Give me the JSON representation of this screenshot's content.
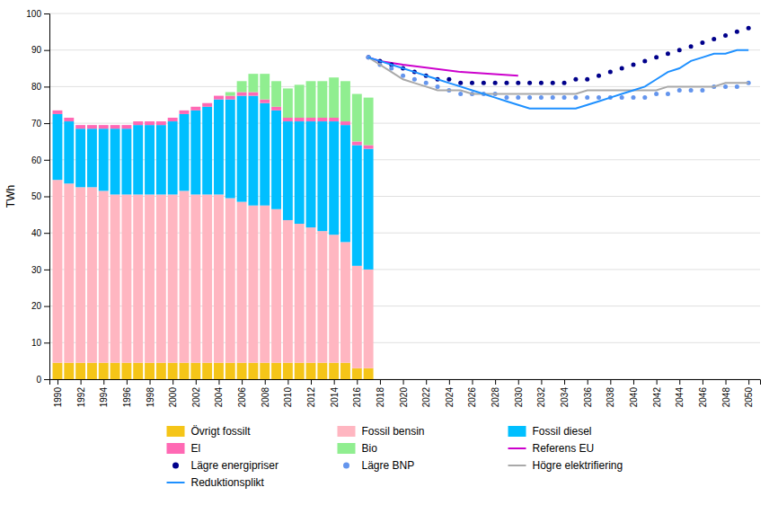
{
  "chart_data": {
    "type": "bar",
    "stacked": true,
    "grid": true,
    "ylabel": "TWh",
    "xlim": [
      1989.3,
      2051
    ],
    "xticks": [
      1990,
      1992,
      1994,
      1996,
      1998,
      2000,
      2002,
      2004,
      2006,
      2008,
      2010,
      2012,
      2014,
      2016,
      2018,
      2020,
      2022,
      2024,
      2026,
      2028,
      2030,
      2032,
      2034,
      2036,
      2038,
      2040,
      2042,
      2044,
      2046,
      2048,
      2050
    ],
    "ylim": [
      0,
      100
    ],
    "yticks": [
      0,
      10,
      20,
      30,
      40,
      50,
      60,
      70,
      80,
      90,
      100
    ],
    "series": [
      {
        "name": "Övrigt fossilt",
        "type": "bar",
        "color": "#F5C518",
        "x": [
          1990,
          1991,
          1992,
          1993,
          1994,
          1995,
          1996,
          1997,
          1998,
          1999,
          2000,
          2001,
          2002,
          2003,
          2004,
          2005,
          2006,
          2007,
          2008,
          2009,
          2010,
          2011,
          2012,
          2013,
          2014,
          2015,
          2016,
          2017
        ],
        "values": [
          4.5,
          4.5,
          4.5,
          4.5,
          4.5,
          4.5,
          4.5,
          4.5,
          4.5,
          4.5,
          4.5,
          4.5,
          4.5,
          4.5,
          4.5,
          4.5,
          4.5,
          4.5,
          4.5,
          4.5,
          4.5,
          4.5,
          4.5,
          4.5,
          4.5,
          4.5,
          3.0,
          3.0
        ]
      },
      {
        "name": "Fossil bensin",
        "type": "bar",
        "color": "#FFB6C1",
        "x": [
          1990,
          1991,
          1992,
          1993,
          1994,
          1995,
          1996,
          1997,
          1998,
          1999,
          2000,
          2001,
          2002,
          2003,
          2004,
          2005,
          2006,
          2007,
          2008,
          2009,
          2010,
          2011,
          2012,
          2013,
          2014,
          2015,
          2016,
          2017
        ],
        "values": [
          50,
          49,
          48,
          48,
          47,
          46,
          46,
          46,
          46,
          46,
          46,
          47,
          46,
          46,
          46,
          45,
          44,
          43,
          43,
          42,
          39,
          38,
          37,
          36,
          35,
          33,
          28,
          27
        ]
      },
      {
        "name": "Fossil diesel",
        "type": "bar",
        "color": "#00BFFF",
        "x": [
          1990,
          1991,
          1992,
          1993,
          1994,
          1995,
          1996,
          1997,
          1998,
          1999,
          2000,
          2001,
          2002,
          2003,
          2004,
          2005,
          2006,
          2007,
          2008,
          2009,
          2010,
          2011,
          2012,
          2013,
          2014,
          2015,
          2016,
          2017
        ],
        "values": [
          18,
          17,
          16,
          16,
          17,
          18,
          18,
          19,
          19,
          19,
          20,
          21,
          23,
          24,
          26,
          27,
          29,
          30,
          28,
          27,
          27,
          28,
          29,
          30,
          31,
          32,
          33,
          33
        ]
      },
      {
        "name": "El",
        "type": "bar",
        "color": "#FF69B4",
        "x": [
          1990,
          1991,
          1992,
          1993,
          1994,
          1995,
          1996,
          1997,
          1998,
          1999,
          2000,
          2001,
          2002,
          2003,
          2004,
          2005,
          2006,
          2007,
          2008,
          2009,
          2010,
          2011,
          2012,
          2013,
          2014,
          2015,
          2016,
          2017
        ],
        "values": [
          1,
          1,
          1,
          1,
          1,
          1,
          1,
          1,
          1,
          1,
          1,
          1,
          1,
          1,
          1,
          1,
          1,
          1,
          1,
          1,
          1,
          1,
          1,
          1,
          1,
          1,
          1,
          1
        ]
      },
      {
        "name": "Bio",
        "type": "bar",
        "color": "#90EE90",
        "x": [
          1990,
          1991,
          1992,
          1993,
          1994,
          1995,
          1996,
          1997,
          1998,
          1999,
          2000,
          2001,
          2002,
          2003,
          2004,
          2005,
          2006,
          2007,
          2008,
          2009,
          2010,
          2011,
          2012,
          2013,
          2014,
          2015,
          2016,
          2017
        ],
        "values": [
          0,
          0,
          0,
          0,
          0,
          0,
          0,
          0,
          0,
          0,
          0,
          0,
          0,
          0,
          0,
          1,
          3,
          5,
          7,
          7,
          8,
          9,
          10,
          10,
          11,
          11,
          13,
          13
        ]
      },
      {
        "name": "Referens EU",
        "type": "line",
        "line_style": "solid",
        "color": "#CC00CC",
        "x": [
          2017,
          2018,
          2020,
          2025,
          2030
        ],
        "values": [
          88,
          87,
          86,
          84,
          83
        ]
      },
      {
        "name": "Lägre energipriser",
        "type": "scatter",
        "marker": "circle",
        "line_style": "none",
        "color": "#00008B",
        "x": [
          2017,
          2018,
          2019,
          2020,
          2021,
          2022,
          2023,
          2024,
          2025,
          2026,
          2027,
          2028,
          2029,
          2030,
          2031,
          2032,
          2033,
          2034,
          2035,
          2036,
          2037,
          2038,
          2039,
          2040,
          2041,
          2042,
          2043,
          2044,
          2045,
          2046,
          2047,
          2048,
          2049,
          2050
        ],
        "values": [
          88,
          87,
          86,
          85,
          84,
          83,
          82,
          82,
          81,
          81,
          81,
          81,
          81,
          81,
          81,
          81,
          81,
          81,
          82,
          82,
          83,
          84,
          85,
          86,
          87,
          88,
          89,
          90,
          91,
          92,
          93,
          94,
          95,
          96
        ]
      },
      {
        "name": "Lägre BNP",
        "type": "scatter",
        "marker": "circle",
        "line_style": "none",
        "color": "#6495ED",
        "x": [
          2017,
          2018,
          2019,
          2020,
          2021,
          2022,
          2023,
          2024,
          2025,
          2026,
          2027,
          2028,
          2029,
          2030,
          2031,
          2032,
          2033,
          2034,
          2035,
          2036,
          2037,
          2038,
          2039,
          2040,
          2041,
          2042,
          2043,
          2044,
          2045,
          2046,
          2047,
          2048,
          2049,
          2050
        ],
        "values": [
          88,
          86,
          85,
          83,
          82,
          81,
          80,
          79,
          78,
          78,
          78,
          78,
          77,
          77,
          77,
          77,
          77,
          77,
          77,
          77,
          77,
          77,
          77,
          77,
          77,
          78,
          78,
          79,
          79,
          79,
          80,
          80,
          80,
          81
        ]
      },
      {
        "name": "Högre elektrifiering",
        "type": "line",
        "line_style": "solid",
        "color": "#A9A9A9",
        "x": [
          2017,
          2018,
          2019,
          2020,
          2021,
          2022,
          2023,
          2024,
          2025,
          2026,
          2027,
          2028,
          2029,
          2030,
          2031,
          2032,
          2033,
          2034,
          2035,
          2036,
          2037,
          2038,
          2039,
          2040,
          2041,
          2042,
          2043,
          2044,
          2045,
          2046,
          2047,
          2048,
          2049,
          2050
        ],
        "values": [
          88,
          86,
          84,
          82,
          81,
          80,
          79,
          79,
          79,
          78,
          78,
          78,
          78,
          78,
          78,
          78,
          78,
          78,
          78,
          79,
          79,
          79,
          79,
          79,
          79,
          79,
          80,
          80,
          80,
          80,
          80,
          81,
          81,
          81
        ]
      },
      {
        "name": "Reduktionsplikt",
        "type": "line",
        "line_style": "solid",
        "color": "#1E90FF",
        "x": [
          2017,
          2018,
          2019,
          2020,
          2021,
          2022,
          2023,
          2024,
          2025,
          2026,
          2027,
          2028,
          2029,
          2030,
          2031,
          2032,
          2033,
          2034,
          2035,
          2036,
          2037,
          2038,
          2039,
          2040,
          2041,
          2042,
          2043,
          2044,
          2045,
          2046,
          2047,
          2048,
          2049,
          2050
        ],
        "values": [
          88,
          87,
          86,
          85,
          84,
          83,
          82,
          81,
          80,
          79,
          78,
          77,
          76,
          75,
          74,
          74,
          74,
          74,
          74,
          75,
          76,
          77,
          78,
          79,
          80,
          82,
          84,
          85,
          87,
          88,
          89,
          89,
          90,
          90
        ]
      }
    ]
  }
}
